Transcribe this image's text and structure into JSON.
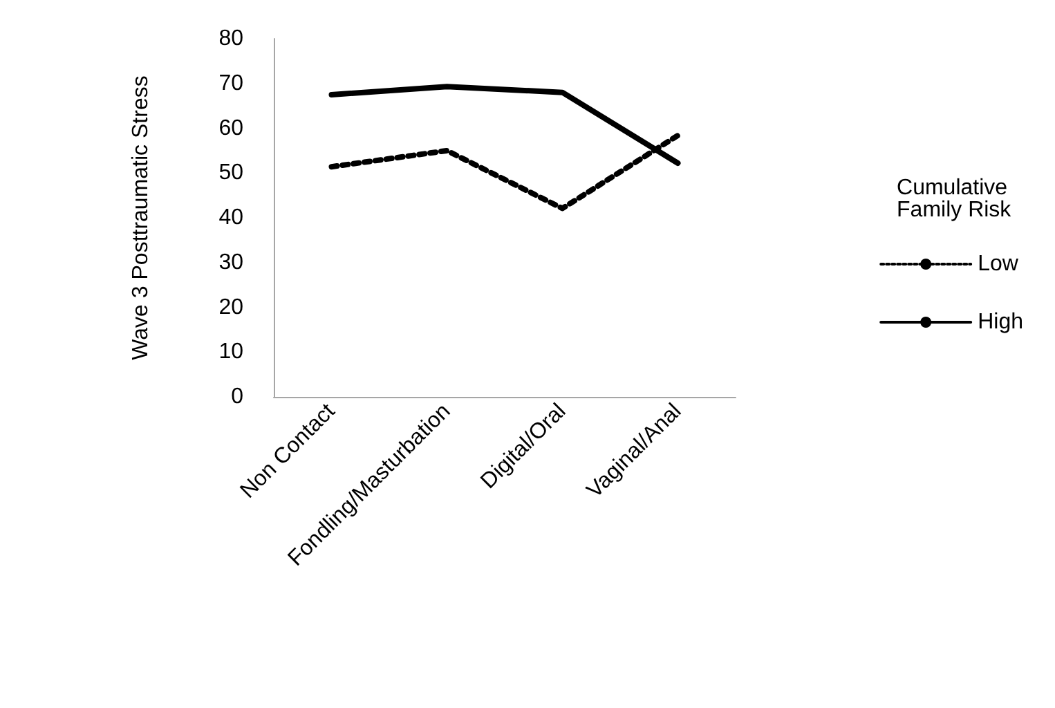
{
  "chart_data": {
    "type": "line",
    "ylabel": "Wave 3 Posttraumatic Stress",
    "legend_title": "Cumulative Family Risk",
    "categories": [
      "Non Contact",
      "Fondling/Masturbation",
      "Digital/Oral",
      "Vaginal/Anal"
    ],
    "series": [
      {
        "name": "Low",
        "color": "#000000",
        "line_style": "dotted",
        "values": [
          51.4,
          55.0,
          42.1,
          58.4
        ]
      },
      {
        "name": "High",
        "color": "#000000",
        "line_style": "solid",
        "values": [
          67.5,
          69.3,
          68.0,
          52.2
        ]
      }
    ],
    "ylim": [
      0,
      80
    ],
    "yticks": [
      0,
      10,
      20,
      30,
      40,
      50,
      60,
      70,
      80
    ],
    "grid": false,
    "legend": "right",
    "marker": "none"
  }
}
